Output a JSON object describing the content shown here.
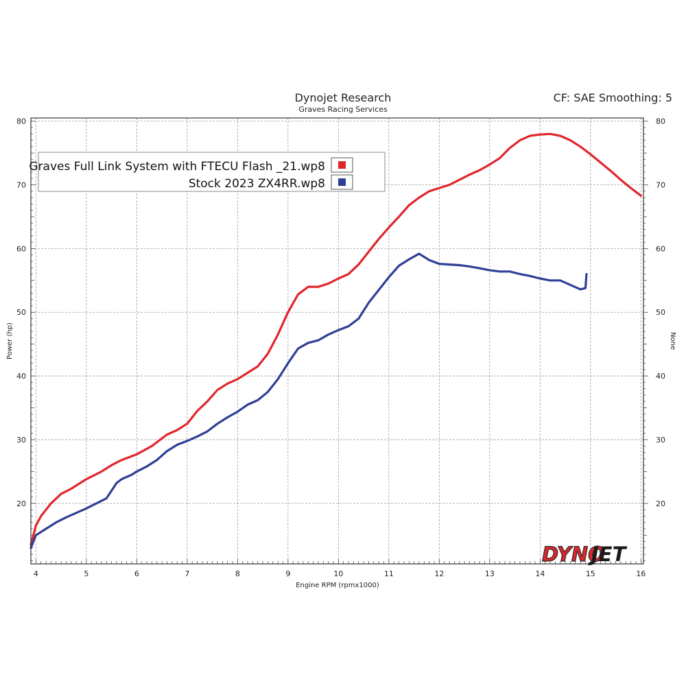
{
  "header": {
    "title": "Dynojet Research",
    "subtitle": "Graves Racing Services",
    "cf_info": "CF: SAE Smoothing: 5"
  },
  "brand": {
    "part1": "DYNO",
    "part2": "JET"
  },
  "colors": {
    "red": "#e0262c",
    "blue": "#2e3f95",
    "grid": "#9a9a9a",
    "frame": "#333333"
  },
  "chart_data": {
    "type": "line",
    "xlabel": "Engine RPM (rpmx1000)",
    "ylabel": "Power (hp)",
    "y2label": "None",
    "xlim": [
      3.9,
      16.05
    ],
    "ylim": [
      10.5,
      80.5
    ],
    "x_ticks": [
      4,
      5,
      6,
      7,
      8,
      9,
      10,
      11,
      12,
      13,
      14,
      15,
      16
    ],
    "y_ticks": [
      20,
      30,
      40,
      50,
      60,
      70,
      80
    ],
    "grid": true,
    "legend_position": "top-left",
    "series": [
      {
        "name": "Graves Full Link System with FTECU Flash _21.wp8",
        "color": "#e0262c",
        "x": [
          3.9,
          4.0,
          4.1,
          4.3,
          4.5,
          4.7,
          5.0,
          5.3,
          5.5,
          5.7,
          6.0,
          6.3,
          6.6,
          6.8,
          7.0,
          7.2,
          7.4,
          7.6,
          7.8,
          8.0,
          8.2,
          8.4,
          8.6,
          8.8,
          9.0,
          9.2,
          9.4,
          9.6,
          9.8,
          10.0,
          10.2,
          10.4,
          10.6,
          10.8,
          11.0,
          11.2,
          11.4,
          11.6,
          11.8,
          12.0,
          12.2,
          12.4,
          12.6,
          12.8,
          13.0,
          13.2,
          13.4,
          13.6,
          13.8,
          14.0,
          14.2,
          14.4,
          14.6,
          14.8,
          15.0,
          15.2,
          15.4,
          15.6,
          15.8,
          16.0
        ],
        "values": [
          13.5,
          16.5,
          18.0,
          20.0,
          21.5,
          22.3,
          23.8,
          25.0,
          26.0,
          26.8,
          27.7,
          29.0,
          30.8,
          31.5,
          32.5,
          34.5,
          36.0,
          37.8,
          38.8,
          39.5,
          40.5,
          41.5,
          43.5,
          46.5,
          50.0,
          52.8,
          54.0,
          54.0,
          54.5,
          55.3,
          56.0,
          57.5,
          59.5,
          61.5,
          63.3,
          65.0,
          66.8,
          68.0,
          69.0,
          69.5,
          70.0,
          70.8,
          71.6,
          72.3,
          73.2,
          74.2,
          75.8,
          77.0,
          77.7,
          77.9,
          78.0,
          77.7,
          77.0,
          76.0,
          74.8,
          73.5,
          72.2,
          70.8,
          69.5,
          68.3
        ]
      },
      {
        "name": "Stock 2023 ZX4RR.wp8",
        "color": "#2e3f95",
        "x": [
          3.9,
          4.0,
          4.2,
          4.4,
          4.6,
          4.8,
          5.0,
          5.2,
          5.4,
          5.5,
          5.6,
          5.7,
          5.9,
          6.0,
          6.2,
          6.4,
          6.6,
          6.8,
          7.0,
          7.2,
          7.4,
          7.6,
          7.8,
          8.0,
          8.2,
          8.4,
          8.6,
          8.8,
          9.0,
          9.2,
          9.4,
          9.6,
          9.8,
          10.0,
          10.2,
          10.4,
          10.6,
          10.8,
          11.0,
          11.2,
          11.4,
          11.6,
          11.8,
          12.0,
          12.2,
          12.4,
          12.6,
          12.8,
          13.0,
          13.2,
          13.4,
          13.6,
          13.8,
          14.0,
          14.2,
          14.4,
          14.6,
          14.8,
          14.9,
          14.92
        ],
        "values": [
          13.0,
          15.0,
          16.0,
          17.0,
          17.8,
          18.5,
          19.2,
          20.0,
          20.8,
          22.0,
          23.2,
          23.8,
          24.5,
          25.0,
          25.8,
          26.8,
          28.2,
          29.2,
          29.8,
          30.5,
          31.3,
          32.5,
          33.5,
          34.4,
          35.5,
          36.2,
          37.5,
          39.5,
          42.0,
          44.3,
          45.2,
          45.6,
          46.5,
          47.2,
          47.8,
          49.0,
          51.5,
          53.5,
          55.5,
          57.3,
          58.3,
          59.2,
          58.2,
          57.6,
          57.5,
          57.4,
          57.2,
          56.9,
          56.6,
          56.4,
          56.4,
          56.0,
          55.7,
          55.3,
          55.0,
          55.0,
          54.3,
          53.6,
          53.8,
          56.0
        ]
      }
    ]
  }
}
